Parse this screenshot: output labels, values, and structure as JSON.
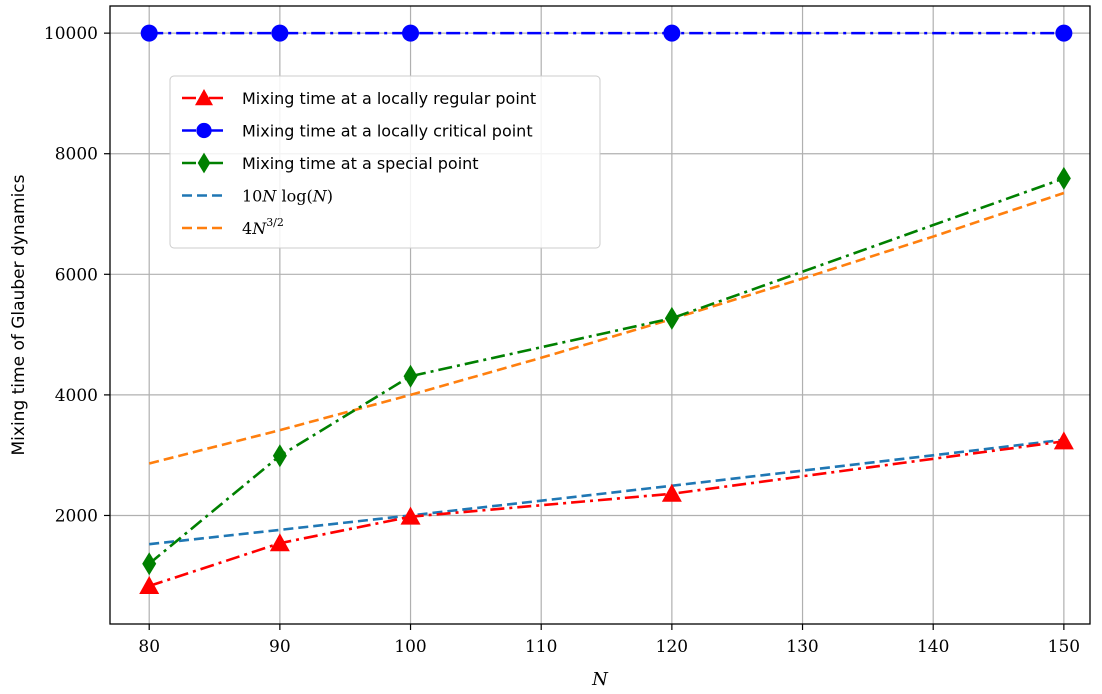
{
  "chart_data": {
    "type": "line",
    "title": "",
    "xlabel": "N",
    "ylabel": "Mixing time of Glauber dynamics",
    "xlim": [
      77,
      152
    ],
    "ylim": [
      200,
      10450
    ],
    "xticks": [
      80,
      90,
      100,
      110,
      120,
      130,
      140,
      150
    ],
    "yticks": [
      2000,
      4000,
      6000,
      8000,
      10000
    ],
    "grid": true,
    "legend_position": "upper-left",
    "series": [
      {
        "name": "Mixing time at a locally regular point",
        "color": "#ff0000",
        "marker": "triangle-up",
        "line_style": "dashdot",
        "x": [
          80,
          90,
          100,
          120,
          150
        ],
        "y": [
          830,
          1540,
          1980,
          2360,
          3230
        ]
      },
      {
        "name": "Mixing time at a locally critical point",
        "color": "#0000ff",
        "marker": "circle",
        "line_style": "dashdot",
        "x": [
          80,
          90,
          100,
          120,
          150
        ],
        "y": [
          10000,
          10000,
          10000,
          10000,
          10000
        ]
      },
      {
        "name": "Mixing time at a special point",
        "color": "#008000",
        "marker": "diamond",
        "line_style": "dashdot",
        "x": [
          80,
          90,
          100,
          120,
          150
        ],
        "y": [
          1200,
          2990,
          4310,
          5270,
          7590
        ]
      },
      {
        "name": "10N log(N)",
        "name_parts": [
          "10",
          "N",
          " log(",
          "N",
          ")"
        ],
        "color": "#1f77b4",
        "marker": "none",
        "line_style": "dashed",
        "x": [
          80,
          90,
          100,
          110,
          120,
          130,
          140,
          150
        ],
        "y": [
          1524,
          1761,
          2001,
          2245,
          2493,
          2744,
          2998,
          3256
        ]
      },
      {
        "name": "4N^{3/2}",
        "name_parts": [
          "4",
          "N",
          "3/2"
        ],
        "color": "#ff7f0e",
        "marker": "none",
        "line_style": "dashed",
        "x": [
          80,
          90,
          100,
          110,
          120,
          130,
          140,
          150
        ],
        "y": [
          2862,
          3415,
          4000,
          4615,
          5258,
          5929,
          6626,
          7348
        ]
      }
    ]
  }
}
